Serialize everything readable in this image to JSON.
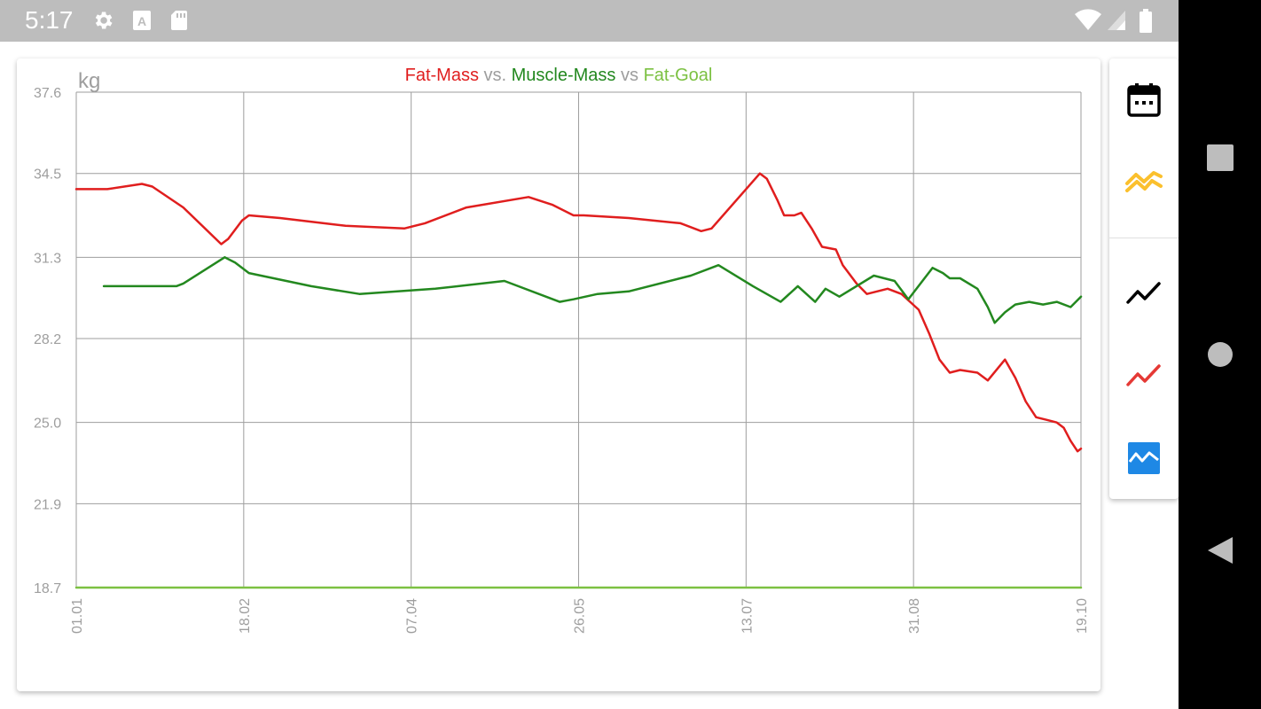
{
  "status_bar": {
    "time": "5:17",
    "icons": [
      "settings-icon",
      "font-a-icon",
      "sd-card-icon",
      "wifi-icon",
      "signal-icon",
      "battery-icon"
    ]
  },
  "chart_data": {
    "type": "line",
    "title_parts": [
      {
        "text": "Fat-Mass",
        "color": "#e01e1e"
      },
      {
        "text": " vs. ",
        "color": "#9e9e9e"
      },
      {
        "text": "Muscle-Mass",
        "color": "#23881f"
      },
      {
        "text": " vs ",
        "color": "#9e9e9e"
      },
      {
        "text": "Fat-Goal",
        "color": "#7cc142"
      }
    ],
    "ylabel": "kg",
    "ylim": [
      18.7,
      37.6
    ],
    "yticks": [
      "37.6",
      "34.5",
      "31.3",
      "28.2",
      "25.0",
      "21.9",
      "18.7"
    ],
    "xlim": [
      "2019-01-01",
      "2019-10-19"
    ],
    "xticks": [
      "01.01",
      "18.02",
      "07.04",
      "26.05",
      "13.07",
      "31.08",
      "19.10"
    ],
    "grid": true,
    "series": [
      {
        "name": "Fat-Mass",
        "color": "#e01e1e",
        "points": [
          [
            "2019-01-01",
            33.9
          ],
          [
            "2019-01-10",
            33.9
          ],
          [
            "2019-01-20",
            34.1
          ],
          [
            "2019-01-23",
            34.0
          ],
          [
            "2019-02-01",
            33.2
          ],
          [
            "2019-02-12",
            31.8
          ],
          [
            "2019-02-14",
            32.0
          ],
          [
            "2019-02-18",
            32.7
          ],
          [
            "2019-02-20",
            32.9
          ],
          [
            "2019-03-01",
            32.8
          ],
          [
            "2019-03-20",
            32.5
          ],
          [
            "2019-04-06",
            32.4
          ],
          [
            "2019-04-12",
            32.6
          ],
          [
            "2019-04-24",
            33.2
          ],
          [
            "2019-05-12",
            33.6
          ],
          [
            "2019-05-19",
            33.3
          ],
          [
            "2019-05-25",
            32.9
          ],
          [
            "2019-05-28",
            32.9
          ],
          [
            "2019-06-10",
            32.8
          ],
          [
            "2019-06-25",
            32.6
          ],
          [
            "2019-07-01",
            32.3
          ],
          [
            "2019-07-04",
            32.4
          ],
          [
            "2019-07-18",
            34.5
          ],
          [
            "2019-07-20",
            34.3
          ],
          [
            "2019-07-23",
            33.5
          ],
          [
            "2019-07-25",
            32.9
          ],
          [
            "2019-07-28",
            32.9
          ],
          [
            "2019-07-30",
            33.0
          ],
          [
            "2019-08-02",
            32.4
          ],
          [
            "2019-08-05",
            31.7
          ],
          [
            "2019-08-09",
            31.6
          ],
          [
            "2019-08-11",
            31.0
          ],
          [
            "2019-08-15",
            30.3
          ],
          [
            "2019-08-18",
            29.9
          ],
          [
            "2019-08-24",
            30.1
          ],
          [
            "2019-08-28",
            29.9
          ],
          [
            "2019-09-02",
            29.3
          ],
          [
            "2019-09-05",
            28.4
          ],
          [
            "2019-09-08",
            27.4
          ],
          [
            "2019-09-11",
            26.9
          ],
          [
            "2019-09-14",
            27.0
          ],
          [
            "2019-09-19",
            26.9
          ],
          [
            "2019-09-22",
            26.6
          ],
          [
            "2019-09-27",
            27.4
          ],
          [
            "2019-09-30",
            26.7
          ],
          [
            "2019-10-03",
            25.8
          ],
          [
            "2019-10-06",
            25.2
          ],
          [
            "2019-10-09",
            25.1
          ],
          [
            "2019-10-12",
            25.0
          ],
          [
            "2019-10-14",
            24.8
          ],
          [
            "2019-10-16",
            24.3
          ],
          [
            "2019-10-18",
            23.9
          ],
          [
            "2019-10-19",
            24.0
          ]
        ]
      },
      {
        "name": "Muscle-Mass",
        "color": "#23881f",
        "points": [
          [
            "2019-01-09",
            30.2
          ],
          [
            "2019-01-30",
            30.2
          ],
          [
            "2019-02-01",
            30.3
          ],
          [
            "2019-02-13",
            31.3
          ],
          [
            "2019-02-16",
            31.1
          ],
          [
            "2019-02-20",
            30.7
          ],
          [
            "2019-03-10",
            30.2
          ],
          [
            "2019-03-24",
            29.9
          ],
          [
            "2019-04-15",
            30.1
          ],
          [
            "2019-05-05",
            30.4
          ],
          [
            "2019-05-21",
            29.6
          ],
          [
            "2019-05-25",
            29.7
          ],
          [
            "2019-06-01",
            29.9
          ],
          [
            "2019-06-10",
            30.0
          ],
          [
            "2019-06-28",
            30.6
          ],
          [
            "2019-07-06",
            31.0
          ],
          [
            "2019-07-16",
            30.2
          ],
          [
            "2019-07-24",
            29.6
          ],
          [
            "2019-07-29",
            30.2
          ],
          [
            "2019-08-03",
            29.6
          ],
          [
            "2019-08-06",
            30.1
          ],
          [
            "2019-08-10",
            29.8
          ],
          [
            "2019-08-20",
            30.6
          ],
          [
            "2019-08-26",
            30.4
          ],
          [
            "2019-08-30",
            29.7
          ],
          [
            "2019-09-06",
            30.9
          ],
          [
            "2019-09-09",
            30.7
          ],
          [
            "2019-09-11",
            30.5
          ],
          [
            "2019-09-14",
            30.5
          ],
          [
            "2019-09-19",
            30.1
          ],
          [
            "2019-09-22",
            29.4
          ],
          [
            "2019-09-24",
            28.8
          ],
          [
            "2019-09-27",
            29.2
          ],
          [
            "2019-09-30",
            29.5
          ],
          [
            "2019-10-04",
            29.6
          ],
          [
            "2019-10-08",
            29.5
          ],
          [
            "2019-10-12",
            29.6
          ],
          [
            "2019-10-16",
            29.4
          ],
          [
            "2019-10-19",
            29.8
          ]
        ]
      },
      {
        "name": "Fat-Goal",
        "color": "#7cc142",
        "points": [
          [
            "2019-01-01",
            18.7
          ],
          [
            "2019-10-19",
            18.7
          ]
        ]
      }
    ]
  },
  "side_panel": {
    "buttons": [
      {
        "name": "date-range-icon",
        "color": "#000000"
      },
      {
        "name": "trend-multi-icon",
        "color": "#fbc02d"
      },
      {
        "name": "line-chart-icon",
        "color": "#000000"
      },
      {
        "name": "trending-line-icon",
        "color": "#e53935"
      },
      {
        "name": "area-chart-icon",
        "color": "#1e88e5"
      }
    ]
  },
  "nav_bar": {
    "buttons": [
      "recents-square-icon",
      "home-circle-icon",
      "back-triangle-icon"
    ]
  }
}
